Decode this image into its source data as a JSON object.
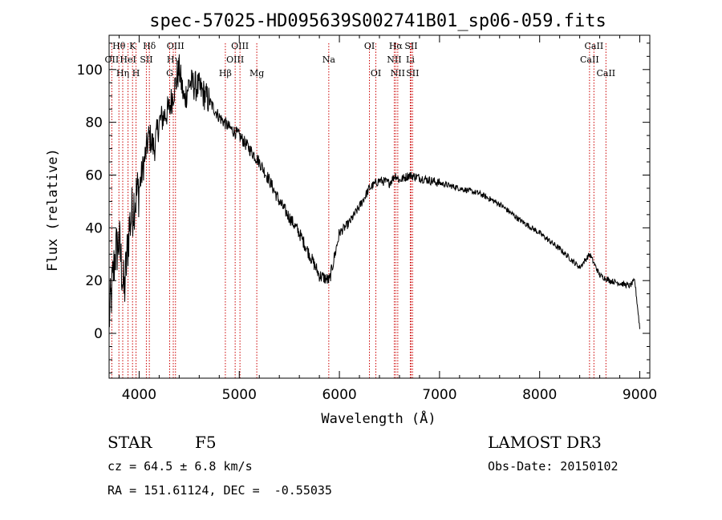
{
  "chart_data": {
    "type": "line",
    "title": "spec-57025-HD095639S002741B01_sp06-059.fits",
    "xlabel": "Wavelength (Å)",
    "ylabel": "Flux (relative)",
    "xlim": [
      3700,
      9100
    ],
    "ylim": [
      -17,
      113
    ],
    "x_ticks": [
      4000,
      5000,
      6000,
      7000,
      8000,
      9000
    ],
    "x_tick_labels": [
      "4000",
      "5000",
      "6000",
      "7000",
      "8000",
      "9000"
    ],
    "y_ticks": [
      0,
      20,
      40,
      60,
      80,
      100
    ],
    "y_tick_labels": [
      "0",
      "20",
      "40",
      "60",
      "80",
      "100"
    ],
    "grid": false,
    "spectrum_anchor_points": {
      "x": [
        3700,
        3760,
        3800,
        3850,
        3900,
        3950,
        4000,
        4050,
        4100,
        4150,
        4200,
        4300,
        4400,
        4450,
        4500,
        4600,
        4700,
        4800,
        4900,
        5000,
        5100,
        5200,
        5300,
        5400,
        5500,
        5600,
        5700,
        5800,
        5900,
        6000,
        6100,
        6200,
        6300,
        6400,
        6500,
        6560,
        6600,
        6700,
        6800,
        6900,
        7000,
        7200,
        7400,
        7600,
        7800,
        8000,
        8200,
        8400,
        8500,
        8600,
        8700,
        8800,
        8900,
        8950,
        9000
      ],
      "y": [
        5,
        30,
        35,
        15,
        40,
        50,
        55,
        65,
        75,
        70,
        80,
        85,
        100,
        88,
        95,
        93,
        88,
        82,
        78,
        75,
        70,
        65,
        58,
        50,
        44,
        38,
        30,
        22,
        20,
        38,
        42,
        48,
        55,
        58,
        57,
        60,
        58,
        60,
        59,
        58,
        57,
        55,
        53,
        49,
        43,
        38,
        32,
        25,
        30,
        22,
        20,
        19,
        18,
        20,
        2
      ]
    },
    "spectral_lines": [
      {
        "label": "Hθ",
        "wavelength": 3798,
        "row": 0
      },
      {
        "label": "OII",
        "wavelength": 3727,
        "row": 1
      },
      {
        "label": "Hη",
        "wavelength": 3836,
        "row": 2
      },
      {
        "label": "HeI",
        "wavelength": 3889,
        "row": 1
      },
      {
        "label": "K",
        "wavelength": 3934,
        "row": 0
      },
      {
        "label": "H",
        "wavelength": 3969,
        "row": 2
      },
      {
        "label": "SII",
        "wavelength": 4072,
        "row": 1
      },
      {
        "label": "Hδ",
        "wavelength": 4102,
        "row": 0
      },
      {
        "label": "G",
        "wavelength": 4305,
        "row": 2
      },
      {
        "label": "Hγ",
        "wavelength": 4341,
        "row": 1
      },
      {
        "label": "OIII",
        "wavelength": 4363,
        "row": 0
      },
      {
        "label": "Hβ",
        "wavelength": 4861,
        "row": 2
      },
      {
        "label": "OIII",
        "wavelength": 4959,
        "row": 1
      },
      {
        "label": "OIII",
        "wavelength": 5007,
        "row": 0
      },
      {
        "label": "Mg",
        "wavelength": 5175,
        "row": 2
      },
      {
        "label": "Na",
        "wavelength": 5894,
        "row": 1
      },
      {
        "label": "OI",
        "wavelength": 6300,
        "row": 0
      },
      {
        "label": "OI",
        "wavelength": 6364,
        "row": 2
      },
      {
        "label": "NII",
        "wavelength": 6548,
        "row": 1
      },
      {
        "label": "Hα",
        "wavelength": 6563,
        "row": 0
      },
      {
        "label": "NII",
        "wavelength": 6583,
        "row": 2
      },
      {
        "label": "Li",
        "wavelength": 6708,
        "row": 1
      },
      {
        "label": "SII",
        "wavelength": 6716,
        "row": 0
      },
      {
        "label": "SII",
        "wavelength": 6731,
        "row": 2
      },
      {
        "label": "CaII",
        "wavelength": 8498,
        "row": 1
      },
      {
        "label": "CaII",
        "wavelength": 8542,
        "row": 0
      },
      {
        "label": "CaII",
        "wavelength": 8662,
        "row": 2
      }
    ]
  },
  "info": {
    "object_class": "STAR",
    "subclass": "F5",
    "survey": "LAMOST DR3",
    "redshift": "cz = 64.5 ± 6.8 km/s",
    "obs_date": "Obs-Date: 20150102",
    "coords": "RA = 151.61124, DEC =  -0.55035"
  },
  "colors": {
    "spectrum": "#000000",
    "marker_line": "#cc0000",
    "axis": "#000000",
    "background": "#ffffff"
  }
}
